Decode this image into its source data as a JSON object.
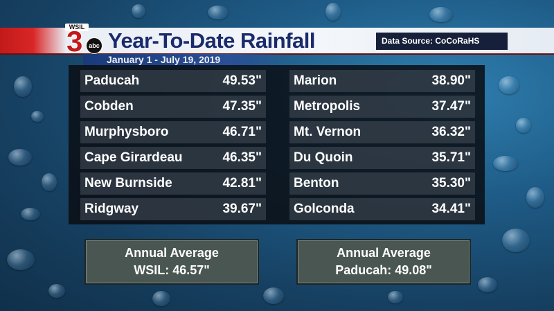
{
  "header": {
    "logo": {
      "station": "WSIL",
      "channel": "3",
      "network": "abc"
    },
    "title": "Year-To-Date Rainfall",
    "source": "Data Source: CoCoRaHS",
    "date_range": "January 1 - July 19, 2019"
  },
  "rainfall": {
    "left": [
      {
        "city": "Paducah",
        "amount": "49.53\""
      },
      {
        "city": "Cobden",
        "amount": "47.35\""
      },
      {
        "city": "Murphysboro",
        "amount": "46.71\""
      },
      {
        "city": "Cape Girardeau",
        "amount": "46.35\""
      },
      {
        "city": "New Burnside",
        "amount": "42.81\""
      },
      {
        "city": "Ridgway",
        "amount": "39.67\""
      }
    ],
    "right": [
      {
        "city": "Marion",
        "amount": "38.90\""
      },
      {
        "city": "Metropolis",
        "amount": "37.47\""
      },
      {
        "city": "Mt. Vernon",
        "amount": "36.32\""
      },
      {
        "city": "Du Quoin",
        "amount": "35.71\""
      },
      {
        "city": "Benton",
        "amount": "35.30\""
      },
      {
        "city": "Golconda",
        "amount": "34.41\""
      }
    ]
  },
  "averages": {
    "wsil": {
      "label": "Annual Average",
      "value": "WSIL: 46.57\""
    },
    "paducah": {
      "label": "Annual Average",
      "value": "Paducah: 49.08\""
    }
  }
}
